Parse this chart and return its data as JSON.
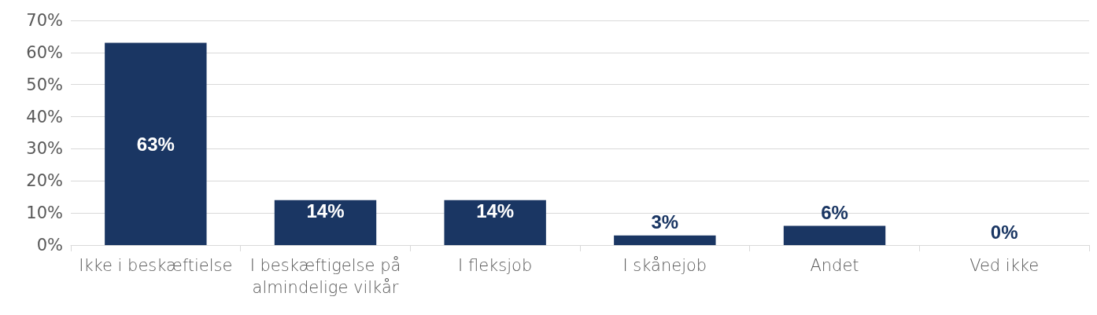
{
  "chart_data": {
    "type": "bar",
    "categories": [
      "Ikke i beskæftielse",
      "I beskæftigelse på almindelige vilkår",
      "I fleksjob",
      "I skånejob",
      "Andet",
      "Ved ikke"
    ],
    "values": [
      63,
      14,
      14,
      3,
      6,
      0
    ],
    "value_labels": [
      "63%",
      "14%",
      "14%",
      "3%",
      "6%",
      "0%"
    ],
    "color": "#1a3663",
    "ylim": [
      0,
      70
    ],
    "yticks": [
      {
        "value": 0,
        "label": "0%"
      },
      {
        "value": 10,
        "label": "10%"
      },
      {
        "value": 20,
        "label": "20%"
      },
      {
        "value": 30,
        "label": "30%"
      },
      {
        "value": 40,
        "label": "40%"
      },
      {
        "value": 50,
        "label": "50%"
      },
      {
        "value": 60,
        "label": "60%"
      },
      {
        "value": 70,
        "label": "70%"
      }
    ],
    "grid": "y"
  }
}
